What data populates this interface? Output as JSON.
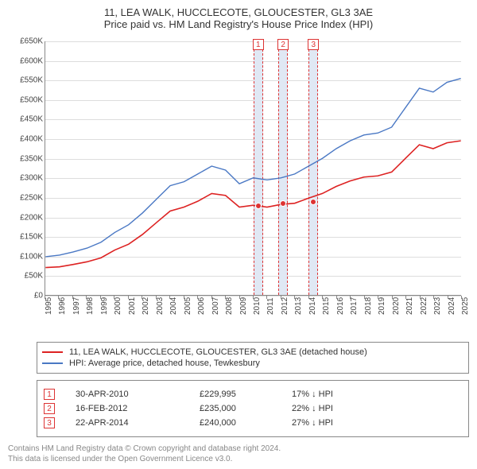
{
  "title_line1": "11, LEA WALK, HUCCLECOTE, GLOUCESTER, GL3 3AE",
  "title_line2": "Price paid vs. HM Land Registry's House Price Index (HPI)",
  "chart": {
    "type": "line",
    "x_years": [
      1995,
      1996,
      1997,
      1998,
      1999,
      2000,
      2001,
      2002,
      2003,
      2004,
      2005,
      2006,
      2007,
      2008,
      2009,
      2010,
      2011,
      2012,
      2013,
      2014,
      2015,
      2016,
      2017,
      2018,
      2019,
      2020,
      2021,
      2022,
      2023,
      2024,
      2025
    ],
    "xlim": [
      1995,
      2025
    ],
    "ylim": [
      0,
      650000
    ],
    "ytick_step": 50000,
    "ytick_labels": [
      "£0",
      "£50K",
      "£100K",
      "£150K",
      "£200K",
      "£250K",
      "£300K",
      "£350K",
      "£400K",
      "£450K",
      "£500K",
      "£550K",
      "£600K",
      "£650K"
    ],
    "grid_color": "#dddddd",
    "axis_color": "#888888",
    "background_color": "#ffffff",
    "band_color": "#e0e8f4",
    "label_fontsize": 10,
    "title_fontsize": 13,
    "series": [
      {
        "name": "property",
        "label": "11, LEA WALK, HUCCLECOTE, GLOUCESTER, GL3 3AE (detached house)",
        "color": "#dd2222",
        "width": 1.6,
        "values_by_year": {
          "1995": 70000,
          "1996": 72000,
          "1997": 78000,
          "1998": 85000,
          "1999": 95000,
          "2000": 115000,
          "2001": 130000,
          "2002": 155000,
          "2003": 185000,
          "2004": 215000,
          "2005": 225000,
          "2006": 240000,
          "2007": 260000,
          "2008": 255000,
          "2009": 225000,
          "2010": 230000,
          "2011": 225000,
          "2012": 232000,
          "2013": 235000,
          "2014": 248000,
          "2015": 260000,
          "2016": 278000,
          "2017": 292000,
          "2018": 302000,
          "2019": 305000,
          "2020": 315000,
          "2021": 350000,
          "2022": 385000,
          "2023": 375000,
          "2024": 390000,
          "2025": 395000
        }
      },
      {
        "name": "hpi",
        "label": "HPI: Average price, detached house, Tewkesbury",
        "color": "#4a78c4",
        "width": 1.4,
        "values_by_year": {
          "1995": 98000,
          "1996": 102000,
          "1997": 110000,
          "1998": 120000,
          "1999": 135000,
          "2000": 160000,
          "2001": 180000,
          "2002": 210000,
          "2003": 245000,
          "2004": 280000,
          "2005": 290000,
          "2006": 310000,
          "2007": 330000,
          "2008": 320000,
          "2009": 285000,
          "2010": 300000,
          "2011": 295000,
          "2012": 300000,
          "2013": 310000,
          "2014": 330000,
          "2015": 350000,
          "2016": 375000,
          "2017": 395000,
          "2018": 410000,
          "2019": 415000,
          "2020": 430000,
          "2021": 480000,
          "2022": 530000,
          "2023": 520000,
          "2024": 545000,
          "2025": 555000
        }
      }
    ],
    "sales": [
      {
        "n": "1",
        "year": 2010.33,
        "price": 229995,
        "date": "30-APR-2010",
        "price_fmt": "£229,995",
        "delta": "17% ↓ HPI"
      },
      {
        "n": "2",
        "year": 2012.13,
        "price": 235000,
        "date": "16-FEB-2012",
        "price_fmt": "£235,000",
        "delta": "22% ↓ HPI"
      },
      {
        "n": "3",
        "year": 2014.31,
        "price": 240000,
        "date": "22-APR-2014",
        "price_fmt": "£240,000",
        "delta": "27% ↓ HPI"
      }
    ],
    "sale_band_halfwidth_years": 0.35
  },
  "legend": {
    "row0_color": "#dd2222",
    "row1_color": "#4a78c4"
  },
  "footer_line1": "Contains HM Land Registry data © Crown copyright and database right 2024.",
  "footer_line2": "This data is licensed under the Open Government Licence v3.0."
}
